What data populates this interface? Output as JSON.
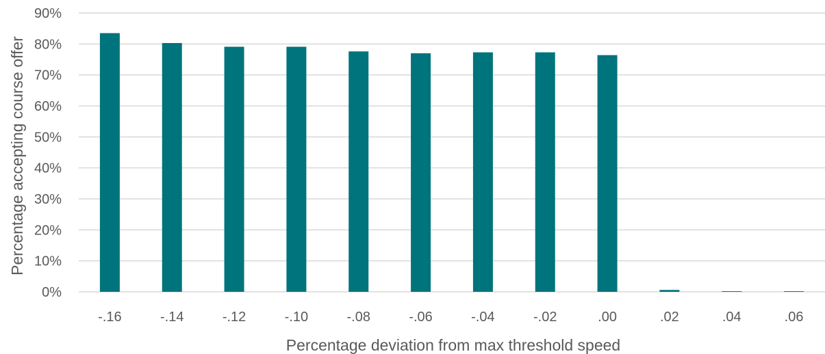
{
  "chart_data": {
    "type": "bar",
    "title": "",
    "xlabel": "Percentage deviation from max threshold speed",
    "ylabel": "Percentage accepting course offer",
    "categories": [
      "-.16",
      "-.14",
      "-.12",
      "-.10",
      "-.08",
      "-.06",
      "-.04",
      "-.02",
      ".00",
      ".02",
      ".04",
      ".06"
    ],
    "values": [
      83.5,
      80.3,
      79.1,
      79.1,
      77.6,
      77.0,
      77.3,
      77.3,
      76.4,
      0.6,
      0.2,
      0.2
    ],
    "ylim": [
      0,
      90
    ],
    "yticks": [
      0,
      10,
      20,
      30,
      40,
      50,
      60,
      70,
      80,
      90
    ],
    "ytick_labels": [
      "0%",
      "10%",
      "20%",
      "30%",
      "40%",
      "50%",
      "60%",
      "70%",
      "80%",
      "90%"
    ],
    "grid": true,
    "legend": "none",
    "bar_color": "#00747c"
  }
}
